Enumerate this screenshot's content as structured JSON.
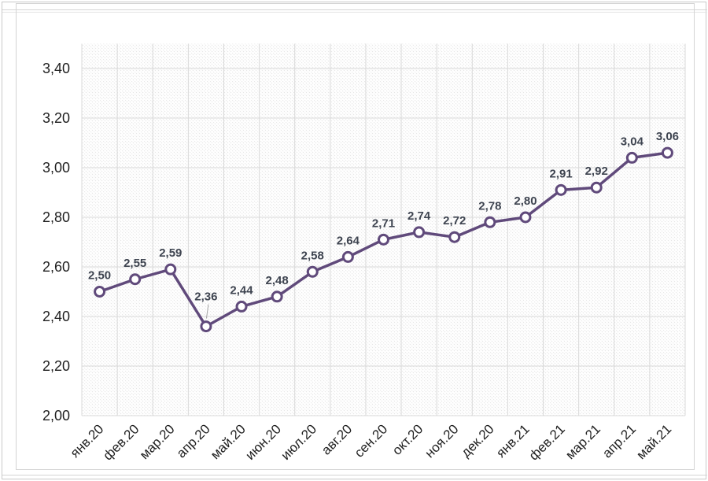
{
  "page": {
    "background": "#ffffff",
    "frame_color": "#d4d4d4"
  },
  "chart_data": {
    "type": "line",
    "title": "",
    "xlabel": "",
    "ylabel": "",
    "legend": "none",
    "grid": "on",
    "decimal_separator": ",",
    "categories": [
      "янв.20",
      "фев.20",
      "мар.20",
      "апр.20",
      "май.20",
      "июн.20",
      "июл.20",
      "авг.20",
      "сен.20",
      "окт.20",
      "ноя.20",
      "дек.20",
      "янв.21",
      "фев.21",
      "мар.21",
      "апр.21",
      "май.21"
    ],
    "values": [
      2.5,
      2.55,
      2.59,
      2.36,
      2.44,
      2.48,
      2.58,
      2.64,
      2.71,
      2.74,
      2.72,
      2.78,
      2.8,
      2.91,
      2.92,
      3.04,
      3.06
    ],
    "value_labels": [
      "2,50",
      "2,55",
      "2,59",
      "2,36",
      "2,44",
      "2,48",
      "2,58",
      "2,64",
      "2,71",
      "2,74",
      "2,72",
      "2,78",
      "2,80",
      "2,91",
      "2,92",
      "3,04",
      "3,06"
    ],
    "y_tick_labels": [
      "2,00",
      "2,20",
      "2,40",
      "2,60",
      "2,80",
      "3,00",
      "3,20",
      "3,40"
    ],
    "ylim": [
      2.0,
      3.5
    ],
    "ytick_step": 0.2,
    "line_color": "#604a7b",
    "marker": {
      "shape": "circle",
      "fill": "#ffffff",
      "stroke": "#604a7b"
    },
    "grid_color": "#d9d9d9",
    "plot_bg_pattern": "diagonal-hatch",
    "hatch_color": "#e2e2e2",
    "axis_label_color": "#1f1f1f",
    "data_label_color": "#3e4450",
    "callout": {
      "index": 3,
      "label": "2,36",
      "leader_color": "#a6a6a6"
    }
  }
}
